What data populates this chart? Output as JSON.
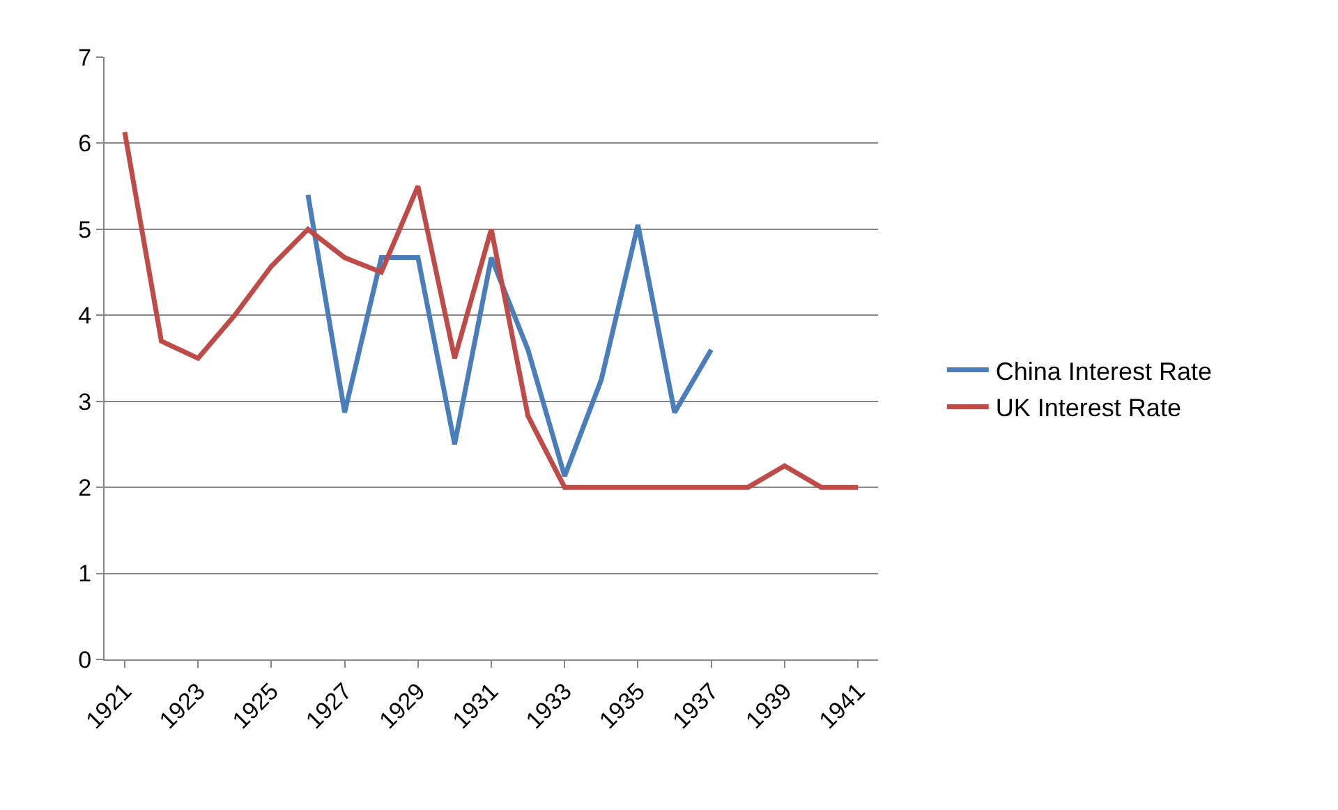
{
  "chart_data": {
    "type": "line",
    "x": [
      1921,
      1922,
      1923,
      1924,
      1925,
      1926,
      1927,
      1928,
      1929,
      1930,
      1931,
      1932,
      1933,
      1934,
      1935,
      1936,
      1937,
      1938,
      1939,
      1940,
      1941
    ],
    "series": [
      {
        "name": "China Interest Rate",
        "color": "#4a7ebb",
        "values": [
          null,
          null,
          null,
          null,
          null,
          5.4,
          2.87,
          4.67,
          4.67,
          2.5,
          4.67,
          3.6,
          2.13,
          3.25,
          5.05,
          2.87,
          3.6,
          null,
          null,
          null,
          null
        ]
      },
      {
        "name": "UK Interest Rate",
        "color": "#be4b48",
        "values": [
          6.13,
          3.7,
          3.5,
          4.0,
          4.57,
          5.0,
          4.67,
          4.5,
          5.5,
          3.5,
          5.0,
          2.83,
          2.0,
          2.0,
          2.0,
          2.0,
          2.0,
          2.0,
          2.25,
          2.0,
          2.0
        ]
      }
    ],
    "xlim": [
      1920.45,
      1941.55
    ],
    "xticks": [
      1921,
      1923,
      1925,
      1927,
      1929,
      1931,
      1933,
      1935,
      1937,
      1939,
      1941
    ],
    "ylim": [
      0,
      7
    ],
    "yticks": [
      0,
      1,
      2,
      3,
      4,
      5,
      6,
      7
    ],
    "grid": "y",
    "legend": "right",
    "marker": "none",
    "line_style": "solid"
  }
}
